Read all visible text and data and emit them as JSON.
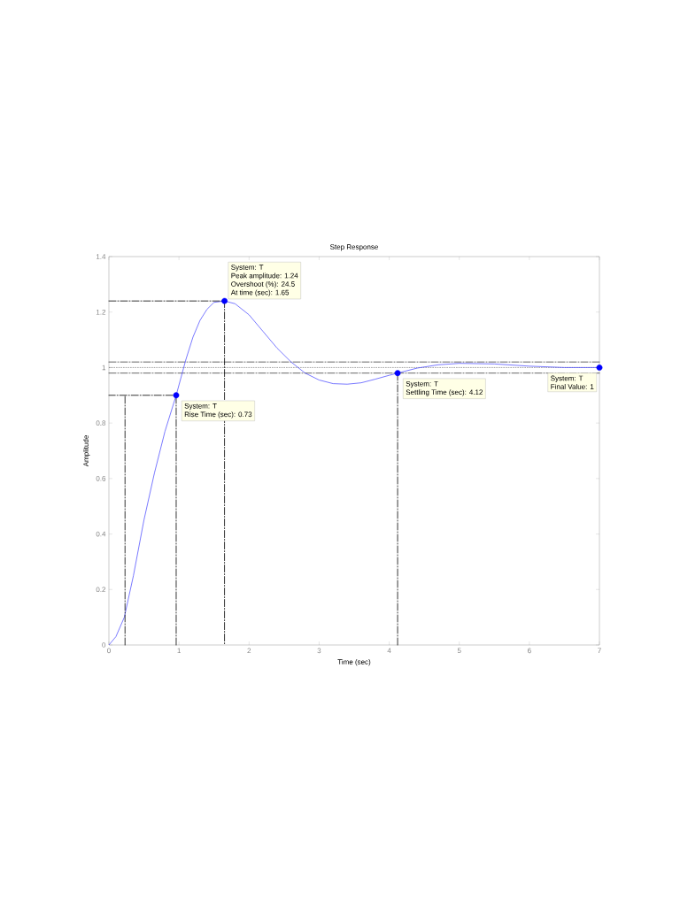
{
  "chart_data": {
    "type": "line",
    "title": "Step Response",
    "xlabel": "Time (sec)",
    "ylabel": "Amplitude",
    "xlim": [
      0,
      7
    ],
    "ylim": [
      0,
      1.4
    ],
    "xticks": [
      0,
      1,
      2,
      3,
      4,
      5,
      6,
      7
    ],
    "yticks": [
      0,
      0.2,
      0.4,
      0.6,
      0.8,
      1,
      1.2,
      1.4
    ],
    "series": [
      {
        "color": "#4040ff",
        "line_style": "solid",
        "x": [
          0,
          0.1,
          0.22,
          0.35,
          0.5,
          0.65,
          0.8,
          0.96,
          1.1,
          1.2,
          1.3,
          1.4,
          1.5,
          1.65,
          1.8,
          2.0,
          2.2,
          2.4,
          2.6,
          2.8,
          3.0,
          3.2,
          3.4,
          3.6,
          3.8,
          4.0,
          4.12,
          4.4,
          4.7,
          5.0,
          5.5,
          6.0,
          6.5,
          7
        ],
        "values": [
          0,
          0.03,
          0.1,
          0.25,
          0.45,
          0.62,
          0.77,
          0.9,
          1.03,
          1.11,
          1.17,
          1.21,
          1.235,
          1.24,
          1.23,
          1.19,
          1.13,
          1.07,
          1.02,
          0.98,
          0.955,
          0.942,
          0.94,
          0.945,
          0.958,
          0.972,
          0.98,
          0.998,
          1.01,
          1.015,
          1.013,
          1.005,
          1.0,
          1.0
        ]
      },
      {
        "color": "#000000",
        "line_style": "dashed",
        "x": [
          0.96,
          0.96,
          0
        ],
        "values": [
          0,
          0.9,
          0.9
        ]
      },
      {
        "color": "#000000",
        "line_style": "dashed",
        "x": [
          0.23,
          0.23
        ],
        "values": [
          0,
          0.9
        ]
      },
      {
        "color": "#000000",
        "line_style": "dashed",
        "x": [
          0,
          1.65,
          1.65
        ],
        "values": [
          1.24,
          1.24,
          0
        ]
      },
      {
        "color": "#000000",
        "line_style": "dashed",
        "x": [
          4.12,
          4.12
        ],
        "values": [
          0,
          0.98
        ]
      },
      {
        "type": "scatter",
        "color": "#0000ff",
        "marker": "circle",
        "x": [
          0.96,
          1.65,
          4.12,
          7
        ],
        "values": [
          0.9,
          1.24,
          0.98,
          1
        ]
      }
    ],
    "ref_lines": [
      {
        "axis": "y",
        "value": 1.02,
        "line_style": "dashed",
        "color": "#000000"
      },
      {
        "axis": "y",
        "value": 1,
        "line_style": "dotted",
        "color": "#000000"
      },
      {
        "axis": "y",
        "value": 0.98,
        "line_style": "dashed",
        "color": "#000000"
      }
    ],
    "annotations": [
      {
        "text": "System: T",
        "x": 0.96,
        "y": 0.9
      },
      {
        "text": "Rise Time (sec): 0.73",
        "x": 0.96,
        "y": 0.9
      },
      "System: T",
      "Peak amplitude: 1.24",
      "Overshoot (%): 24.5",
      {
        "text": "At time (sec): 1.65",
        "x": 1.65,
        "y": 1.24
      },
      {
        "text": "System: T",
        "x": 4.12,
        "y": 0.98
      },
      {
        "text": "Settling Time (sec): 4.12",
        "x": 4.12,
        "y": 0.98
      },
      {
        "text": "System: T",
        "x": 7,
        "y": 1
      },
      {
        "text": "Final Value: 1",
        "x": 7,
        "y": 1
      }
    ]
  }
}
